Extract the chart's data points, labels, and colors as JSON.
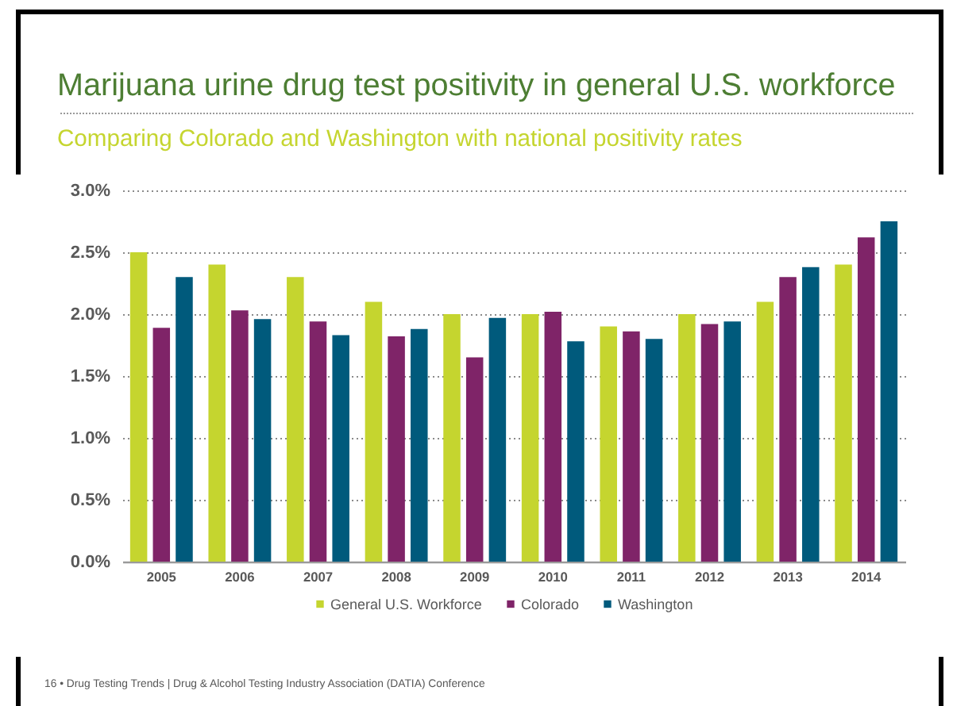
{
  "chart_data": {
    "type": "bar",
    "title": "Marijuana urine drug test positivity in general U.S. workforce",
    "subtitle": "Comparing Colorado and Washington with national positivity rates",
    "annotations": [
      "16 • Drug Testing Trends | Drug & Alcohol Testing Industry Association (DATIA) Conference"
    ],
    "categories": [
      "2005",
      "2006",
      "2007",
      "2008",
      "2009",
      "2010",
      "2011",
      "2012",
      "2013",
      "2014"
    ],
    "series": [
      {
        "name": "General U.S. Workforce",
        "color": "#c5d52f",
        "values": [
          2.5,
          2.4,
          2.3,
          2.1,
          2.0,
          2.0,
          1.9,
          2.0,
          2.1,
          2.4
        ]
      },
      {
        "name": "Colorado",
        "color": "#7f2468",
        "values": [
          1.89,
          2.03,
          1.94,
          1.82,
          1.65,
          2.02,
          1.86,
          1.92,
          2.3,
          2.62
        ]
      },
      {
        "name": "Washington",
        "color": "#005a7c",
        "values": [
          2.3,
          1.96,
          1.83,
          1.88,
          1.97,
          1.78,
          1.8,
          1.94,
          2.38,
          2.75
        ]
      }
    ],
    "ylim": [
      0,
      3
    ],
    "yticks": [
      {
        "value": 0,
        "label": "0.0%"
      },
      {
        "value": 0.5,
        "label": "0.5%"
      },
      {
        "value": 1,
        "label": "1.0%"
      },
      {
        "value": 1.5,
        "label": "1.5%"
      },
      {
        "value": 2,
        "label": "2.0%"
      },
      {
        "value": 2.5,
        "label": "2.5%"
      },
      {
        "value": 3,
        "label": "3.0%"
      }
    ],
    "grid": "y",
    "legend": "bottom"
  }
}
